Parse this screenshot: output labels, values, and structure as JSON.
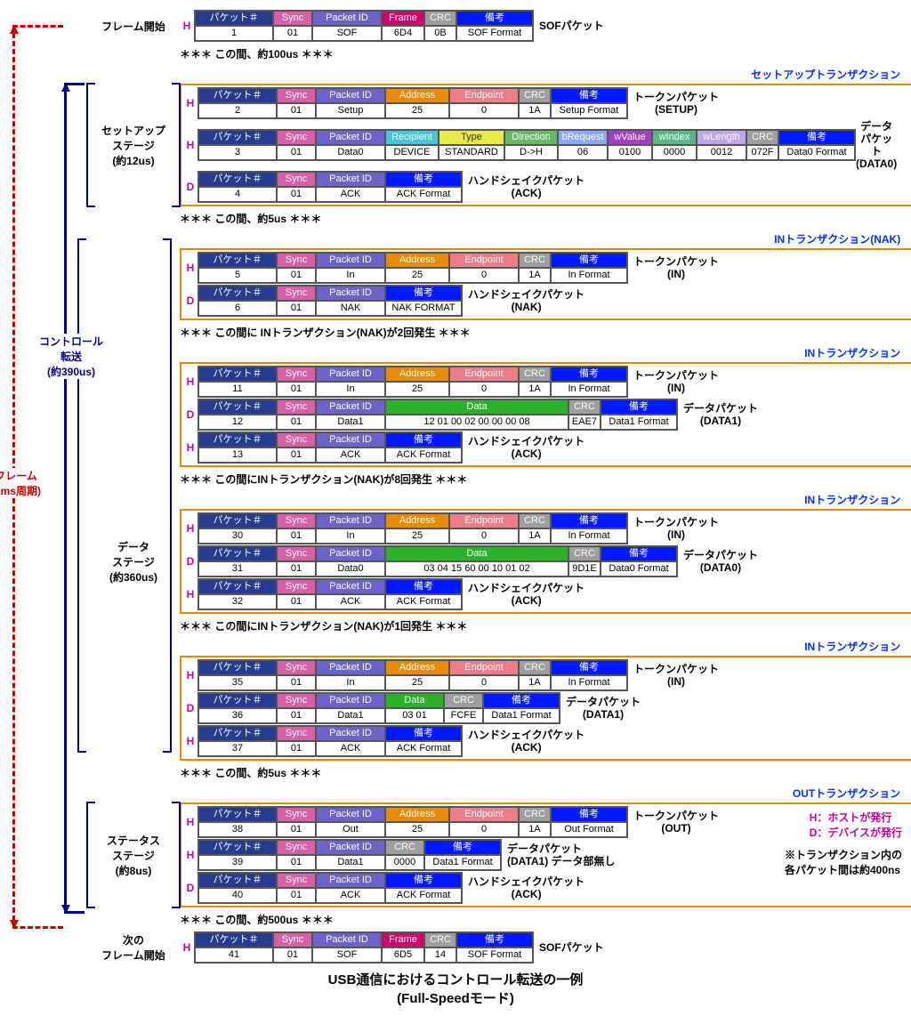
{
  "colors": {
    "packetNumHdr": "#263a8f",
    "sync": "#d85fa8",
    "packetId": "#6d62c8",
    "frame": "#d6006c",
    "crc": "#9e9e9e",
    "remark": "#0019ff",
    "address": "#e88b00",
    "endpoint": "#ee7d8a",
    "recipient": "#46c5d6",
    "type": "#e9e94a",
    "direction": "#66b966",
    "bRequest": "#8ca8ff",
    "wValue": "#a040c0",
    "wIndex": "#58b888",
    "wLength": "#bda7e6",
    "data": "#2ab02a",
    "crc2": "#9e9e9e"
  },
  "widths": {
    "packetNum": 88,
    "sync": 44,
    "packetId": 78,
    "frame": 48,
    "crc": 36,
    "remark": 86,
    "address": 72,
    "endpoint": 78,
    "recipient": 60,
    "type": 74,
    "direction": 60,
    "bRequest": 56,
    "wValue": 50,
    "wIndex": 50,
    "wLength": 56,
    "crc2": 40,
    "remark2": 88,
    "dataWide": 206,
    "dataMid": 66,
    "crcMid": 44
  },
  "railFrameLabel": "フレーム\n(1ms周期)",
  "railCtrlLabel": "コントロール\n転送\n(約390us)",
  "stages": {
    "frameStart": "フレーム開始",
    "setup": "セットアップ\nステージ\n(約12us)",
    "data": "データ\nステージ\n(約360us)",
    "status": "ステータス\nステージ\n(約8us)",
    "nextFrame": "次の\nフレーム開始"
  },
  "sof1": {
    "h": [
      "パケット＃",
      "Sync",
      "Packet ID",
      "Frame",
      "CRC",
      "備考"
    ],
    "v": [
      "1",
      "01",
      "SOF",
      "6D4",
      "0B",
      "SOF Format"
    ],
    "desc": "SOFパケット"
  },
  "gap100": "＊＊＊  この間、約100us  ＊＊＊",
  "txSetupTitle": "セットアップトランザクション",
  "setupToken": {
    "h": [
      "パケット＃",
      "Sync",
      "Packet ID",
      "Address",
      "Endpoint",
      "CRC",
      "備考"
    ],
    "v": [
      "2",
      "01",
      "Setup",
      "25",
      "0",
      "1A",
      "Setup Format"
    ],
    "desc": "トークンパケット",
    "sub": "(SETUP)"
  },
  "setupData": {
    "h": [
      "パケット＃",
      "Sync",
      "Packet ID",
      "Recipient",
      "Type",
      "Direction",
      "bRequest",
      "wValue",
      "wIndex",
      "wLength",
      "CRC",
      "備考"
    ],
    "v": [
      "3",
      "01",
      "Data0",
      "DEVICE",
      "STANDARD",
      "D->H",
      "06",
      "0100",
      "0000",
      "0012",
      "072F",
      "Data0 Format"
    ],
    "desc": "データパケット",
    "sub": "(DATA0)"
  },
  "setupAck": {
    "h": [
      "パケット＃",
      "Sync",
      "Packet ID",
      "備考"
    ],
    "v": [
      "4",
      "01",
      "ACK",
      "ACK Format"
    ],
    "desc": "ハンドシェイクパケット",
    "sub": "(ACK)"
  },
  "gap5a": "＊＊＊  この間、約5us  ＊＊＊",
  "txInNakTitle": "INトランザクション(NAK)",
  "inNakToken": {
    "h": [
      "パケット＃",
      "Sync",
      "Packet ID",
      "Address",
      "Endpoint",
      "CRC",
      "備考"
    ],
    "v": [
      "5",
      "01",
      "In",
      "25",
      "0",
      "1A",
      "In Format"
    ],
    "desc": "トークンパケット",
    "sub": "(IN)"
  },
  "inNak": {
    "h": [
      "パケット＃",
      "Sync",
      "Packet ID",
      "備考"
    ],
    "v": [
      "6",
      "01",
      "NAK",
      "NAK FORMAT"
    ],
    "desc": "ハンドシェイクパケット",
    "sub": "(NAK)"
  },
  "gapNak2": "＊＊＊  この間に INトランザクション(NAK)が2回発生  ＊＊＊",
  "txIn1Title": "INトランザクション",
  "in1Token": {
    "h": [
      "パケット＃",
      "Sync",
      "Packet ID",
      "Address",
      "Endpoint",
      "CRC",
      "備考"
    ],
    "v": [
      "11",
      "01",
      "In",
      "25",
      "0",
      "1A",
      "In Format"
    ],
    "desc": "トークンパケット",
    "sub": "(IN)"
  },
  "in1Data": {
    "h": [
      "パケット＃",
      "Sync",
      "Packet ID",
      "Data",
      "CRC",
      "備考"
    ],
    "v": [
      "12",
      "01",
      "Data1",
      "12  01  00  02  00  00  00  08",
      "EAE7",
      "Data1 Format"
    ],
    "desc": "データパケット",
    "sub": "(DATA1)"
  },
  "in1Ack": {
    "h": [
      "パケット＃",
      "Sync",
      "Packet ID",
      "備考"
    ],
    "v": [
      "13",
      "01",
      "ACK",
      "ACK Format"
    ],
    "desc": "ハンドシェイクパケット",
    "sub": "(ACK)"
  },
  "gapNak8": "＊＊＊  この間にINトランザクション(NAK)が8回発生  ＊＊＊",
  "txIn2Title": "INトランザクション",
  "in2Token": {
    "h": [
      "パケット＃",
      "Sync",
      "Packet ID",
      "Address",
      "Endpoint",
      "CRC",
      "備考"
    ],
    "v": [
      "30",
      "01",
      "In",
      "25",
      "0",
      "1A",
      "In Format"
    ],
    "desc": "トークンパケット",
    "sub": "(IN)"
  },
  "in2Data": {
    "h": [
      "パケット＃",
      "Sync",
      "Packet ID",
      "Data",
      "CRC",
      "備考"
    ],
    "v": [
      "31",
      "01",
      "Data0",
      "03  04  15  60  00  10  01  02",
      "9D1E",
      "Data0 Format"
    ],
    "desc": "データパケット",
    "sub": "(DATA0)"
  },
  "in2Ack": {
    "h": [
      "パケット＃",
      "Sync",
      "Packet ID",
      "備考"
    ],
    "v": [
      "32",
      "01",
      "ACK",
      "ACK Format"
    ],
    "desc": "ハンドシェイクパケット",
    "sub": "(ACK)"
  },
  "gapNak1": "＊＊＊  この間にINトランザクション(NAK)が1回発生  ＊＊＊",
  "txIn3Title": "INトランザクション",
  "in3Token": {
    "h": [
      "パケット＃",
      "Sync",
      "Packet ID",
      "Address",
      "Endpoint",
      "CRC",
      "備考"
    ],
    "v": [
      "35",
      "01",
      "In",
      "25",
      "0",
      "1A",
      "In Format"
    ],
    "desc": "トークンパケット",
    "sub": "(IN)"
  },
  "in3Data": {
    "h": [
      "パケット＃",
      "Sync",
      "Packet ID",
      "Data",
      "CRC",
      "備考"
    ],
    "v": [
      "36",
      "01",
      "Data1",
      "03  01",
      "FCFE",
      "Data1 Format"
    ],
    "desc": "データパケット",
    "sub": "(DATA1)"
  },
  "in3Ack": {
    "h": [
      "パケット＃",
      "Sync",
      "Packet ID",
      "備考"
    ],
    "v": [
      "37",
      "01",
      "ACK",
      "ACK Format"
    ],
    "desc": "ハンドシェイクパケット",
    "sub": "(ACK)"
  },
  "gap5b": "＊＊＊  この間、約5us  ＊＊＊",
  "txOutTitle": "OUTトランザクション",
  "outToken": {
    "h": [
      "パケット＃",
      "Sync",
      "Packet ID",
      "Address",
      "Endpoint",
      "CRC",
      "備考"
    ],
    "v": [
      "38",
      "01",
      "Out",
      "25",
      "0",
      "1A",
      "Out Format"
    ],
    "desc": "トークンパケット",
    "sub": "(OUT)"
  },
  "outData": {
    "h": [
      "パケット＃",
      "Sync",
      "Packet ID",
      "CRC",
      "備考"
    ],
    "v": [
      "39",
      "01",
      "Data1",
      "0000",
      "Data1 Format"
    ],
    "desc": "データパケット",
    "sub": "(DATA1) データ部無し"
  },
  "outAck": {
    "h": [
      "パケット＃",
      "Sync",
      "Packet ID",
      "備考"
    ],
    "v": [
      "40",
      "01",
      "ACK",
      "ACK Format"
    ],
    "desc": "ハンドシェイクパケット",
    "sub": "(ACK)"
  },
  "gap500": "＊＊＊  この間、約500us  ＊＊＊",
  "sof2": {
    "h": [
      "パケット＃",
      "Sync",
      "Packet ID",
      "Frame",
      "CRC",
      "備考"
    ],
    "v": [
      "41",
      "01",
      "SOF",
      "6D5",
      "14",
      "SOF Format"
    ],
    "desc": "SOFパケット"
  },
  "legendH": "H：ホストが発行",
  "legendD": "D：デバイスが発行",
  "footnote": "※トランザクション内の\n各パケット間は約400ns",
  "footerTitle": "USB通信におけるコントロール転送の一例",
  "footerSub": "(Full-Speedモード)"
}
